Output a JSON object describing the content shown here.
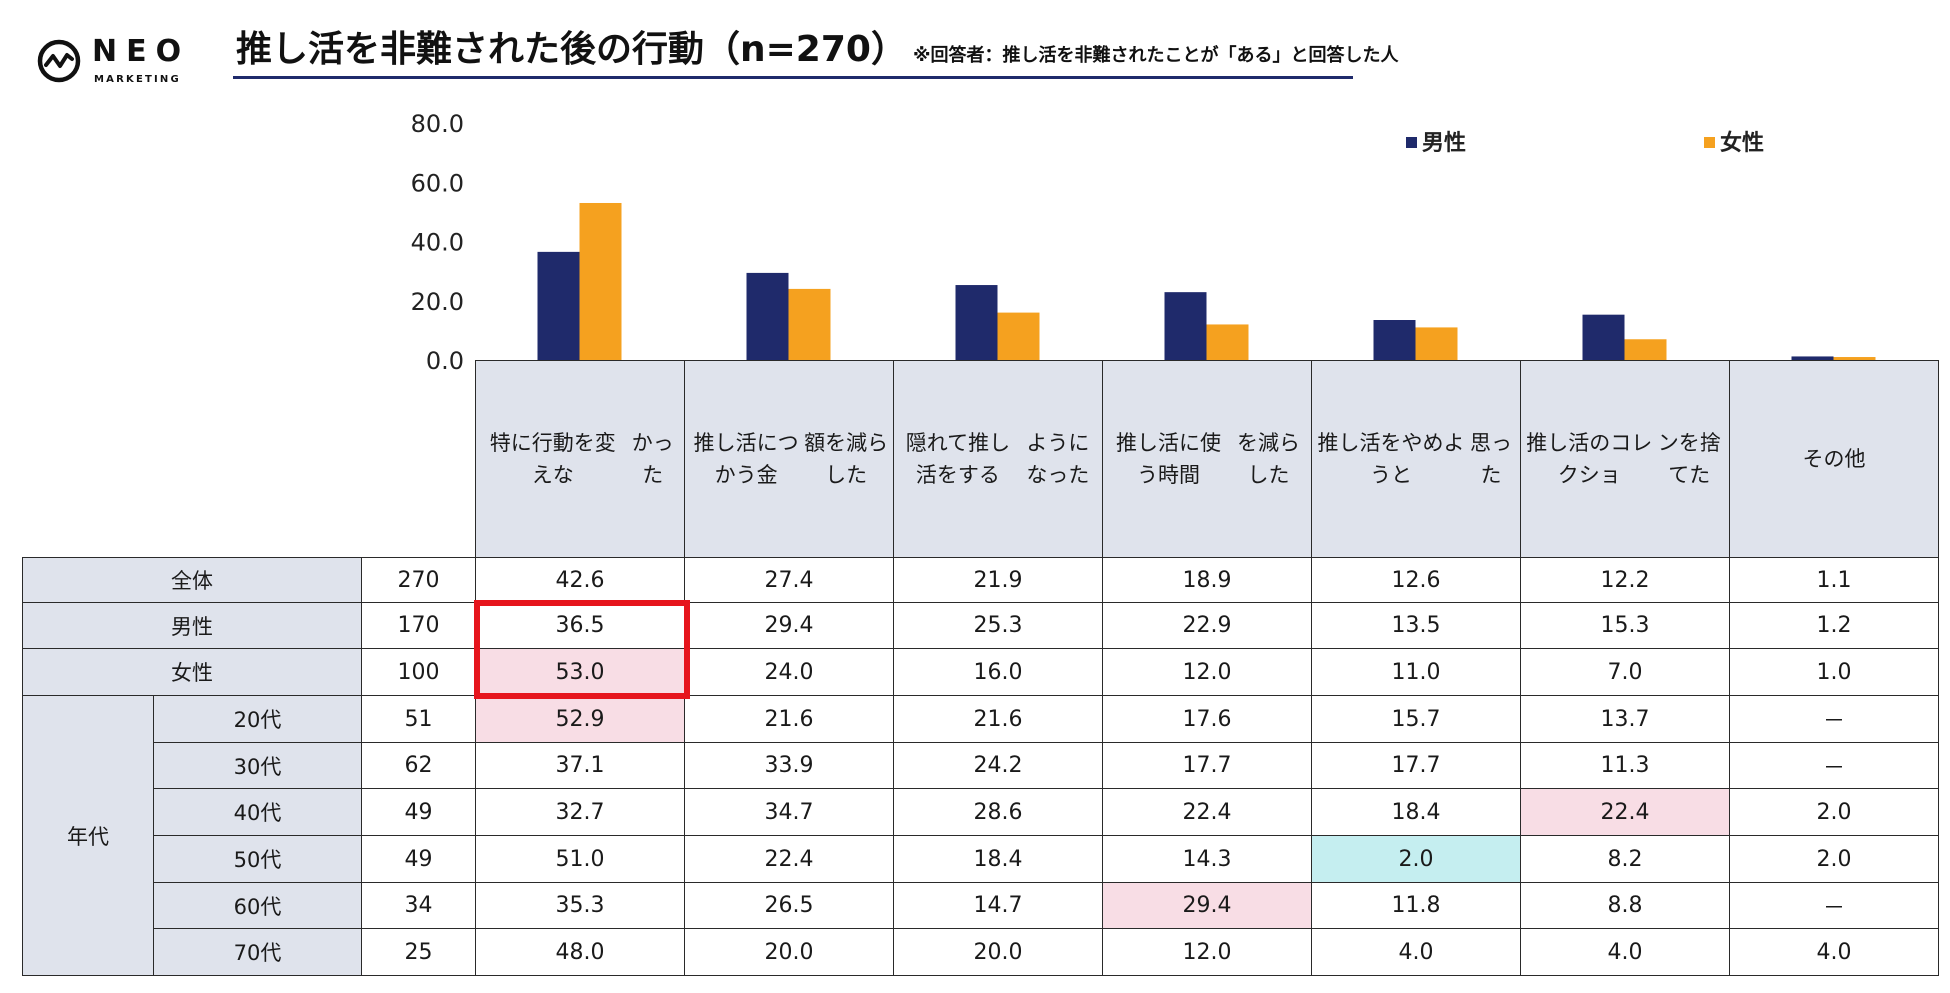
{
  "logo": {
    "name": "NEO",
    "sub": "MARKETING"
  },
  "title": {
    "main": "推し活を非難された後の行動（n=270）",
    "note": "※回答者：推し活を非難されたことが「ある」と回答した人"
  },
  "chart_data": {
    "type": "bar",
    "title": "推し活を非難された後の行動（n=270）",
    "categories": [
      "特に行動を変えなかった",
      "推し活につかう金額を減らした",
      "隠れて推し活をするようになった",
      "推し活に使う時間を減らした",
      "推し活をやめようと思った",
      "推し活のコレクションを捨てた",
      "その他"
    ],
    "series": [
      {
        "name": "男性",
        "values": [
          36.5,
          29.4,
          25.3,
          22.9,
          13.5,
          15.3,
          1.2
        ],
        "color": "#1f2a6b"
      },
      {
        "name": "女性",
        "values": [
          53.0,
          24.0,
          16.0,
          12.0,
          11.0,
          7.0,
          1.0
        ],
        "color": "#f5a11f"
      }
    ],
    "ylim": [
      0,
      80
    ],
    "yticks": [
      "80.0",
      "60.0",
      "40.0",
      "20.0",
      "0.0"
    ],
    "ytick_values": [
      80,
      60,
      40,
      20,
      0
    ],
    "legend_position": "top-right",
    "grid": false
  },
  "table": {
    "headers": [
      "特に行動を変えなかった",
      "推し活につかう金額を減らした",
      "隠れて推し活をするようになった",
      "推し活に使う時間を減らした",
      "推し活をやめようと思った",
      "推し活のコレクションを捨てた",
      "その他"
    ],
    "header_lines": [
      [
        "特に行動を変えな",
        "かった"
      ],
      [
        "推し活につかう金",
        "額を減らした"
      ],
      [
        "隠れて推し活をする",
        "ようになった"
      ],
      [
        "推し活に使う時間",
        "を減らした"
      ],
      [
        "推し活をやめようと",
        "思った"
      ],
      [
        "推し活のコレクショ",
        "ンを捨てた"
      ],
      [
        "その他"
      ]
    ],
    "group_label": "年代",
    "rows": [
      {
        "label": "全体",
        "n": "270",
        "values": [
          "42.6",
          "27.4",
          "21.9",
          "18.9",
          "12.6",
          "12.2",
          "1.1"
        ],
        "highlights": [
          "",
          "",
          "",
          "",
          "",
          "",
          ""
        ]
      },
      {
        "label": "男性",
        "n": "170",
        "values": [
          "36.5",
          "29.4",
          "25.3",
          "22.9",
          "13.5",
          "15.3",
          "1.2"
        ],
        "highlights": [
          "",
          "",
          "",
          "",
          "",
          "",
          ""
        ]
      },
      {
        "label": "女性",
        "n": "100",
        "values": [
          "53.0",
          "24.0",
          "16.0",
          "12.0",
          "11.0",
          "7.0",
          "1.0"
        ],
        "highlights": [
          "pink",
          "",
          "",
          "",
          "",
          "",
          ""
        ]
      },
      {
        "label": "20代",
        "n": "51",
        "values": [
          "52.9",
          "21.6",
          "21.6",
          "17.6",
          "15.7",
          "13.7",
          "－"
        ],
        "highlights": [
          "pink",
          "",
          "",
          "",
          "",
          "",
          ""
        ]
      },
      {
        "label": "30代",
        "n": "62",
        "values": [
          "37.1",
          "33.9",
          "24.2",
          "17.7",
          "17.7",
          "11.3",
          "－"
        ],
        "highlights": [
          "",
          "",
          "",
          "",
          "",
          "",
          ""
        ]
      },
      {
        "label": "40代",
        "n": "49",
        "values": [
          "32.7",
          "34.7",
          "28.6",
          "22.4",
          "18.4",
          "22.4",
          "2.0"
        ],
        "highlights": [
          "",
          "",
          "",
          "",
          "",
          "pink",
          ""
        ]
      },
      {
        "label": "50代",
        "n": "49",
        "values": [
          "51.0",
          "22.4",
          "18.4",
          "14.3",
          "2.0",
          "8.2",
          "2.0"
        ],
        "highlights": [
          "",
          "",
          "",
          "",
          "cyan",
          "",
          ""
        ]
      },
      {
        "label": "60代",
        "n": "34",
        "values": [
          "35.3",
          "26.5",
          "14.7",
          "29.4",
          "11.8",
          "8.8",
          "－"
        ],
        "highlights": [
          "",
          "",
          "",
          "pink",
          "",
          "",
          ""
        ]
      },
      {
        "label": "70代",
        "n": "25",
        "values": [
          "48.0",
          "20.0",
          "20.0",
          "12.0",
          "4.0",
          "4.0",
          "4.0"
        ],
        "highlights": [
          "",
          "",
          "",
          "",
          "",
          "",
          ""
        ]
      }
    ]
  },
  "colors": {
    "male": "#1f2a6b",
    "female": "#f5a11f",
    "header_bg": "#dfe3ec",
    "pink": "#f8dde5",
    "cyan": "#c5eef0",
    "highlight_frame": "#e6151d"
  }
}
